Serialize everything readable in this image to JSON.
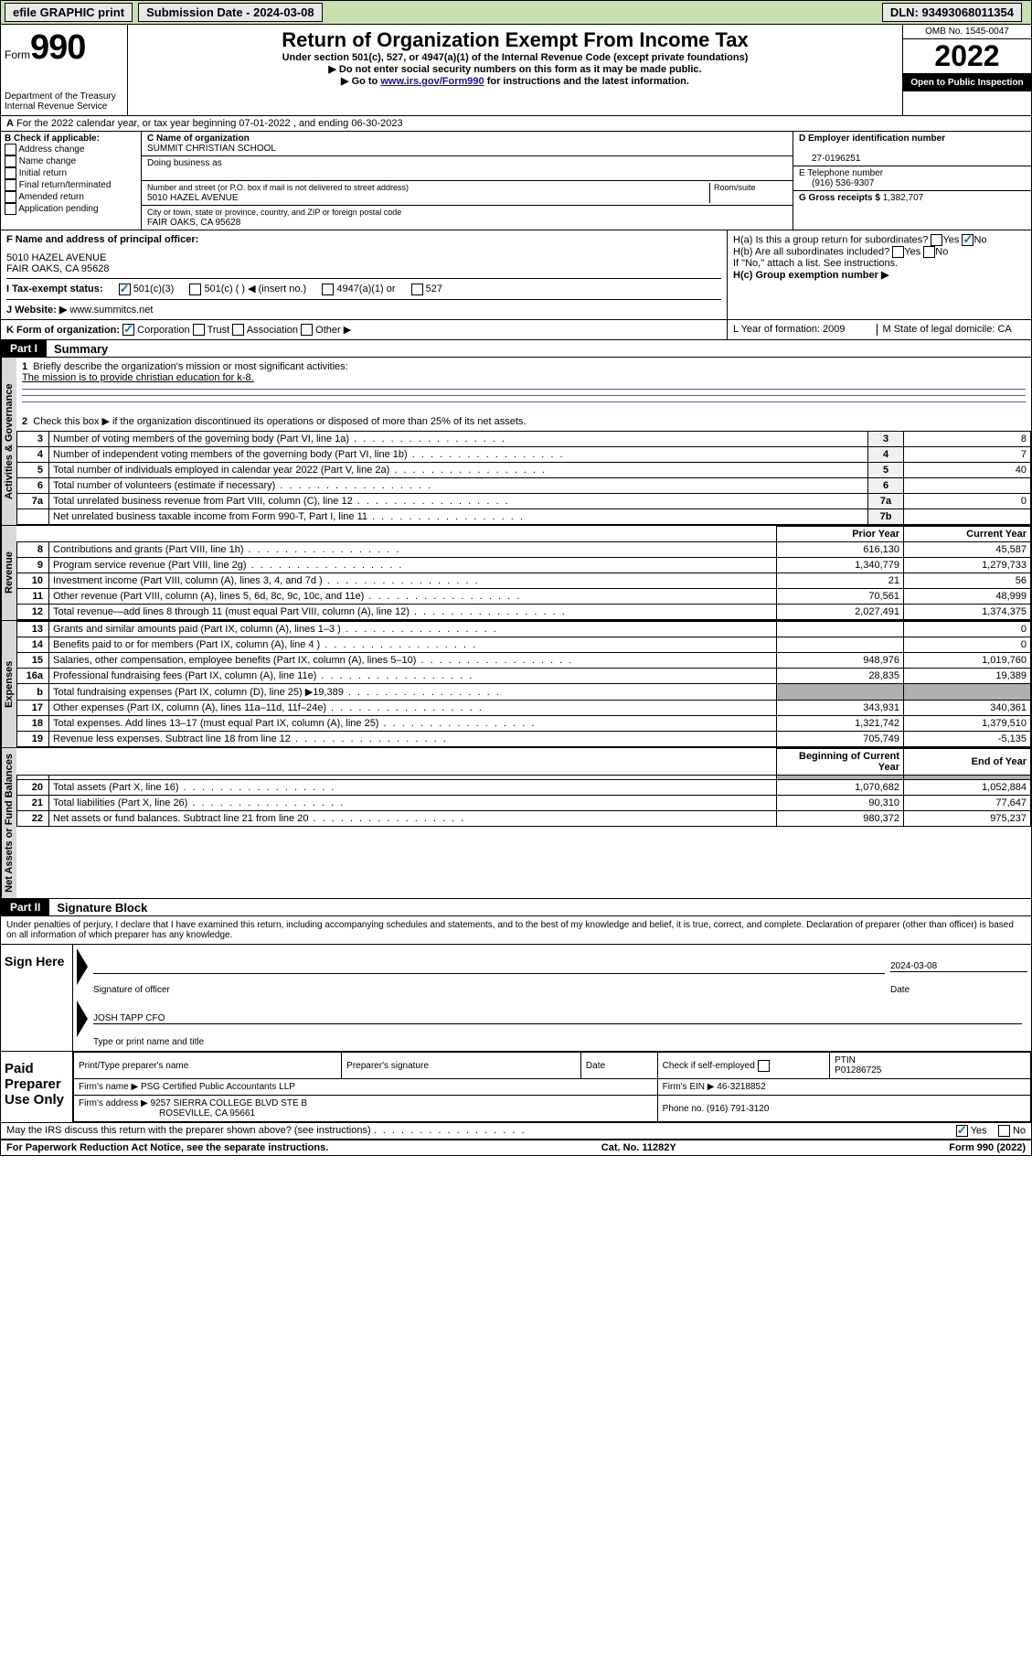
{
  "topbar": {
    "efile": "efile GRAPHIC print",
    "subdate_label": "Submission Date - 2024-03-08",
    "dln": "DLN: 93493068011354"
  },
  "header": {
    "form_word": "Form",
    "form_num": "990",
    "dept": "Department of the Treasury",
    "irs": "Internal Revenue Service",
    "title": "Return of Organization Exempt From Income Tax",
    "sub1": "Under section 501(c), 527, or 4947(a)(1) of the Internal Revenue Code (except private foundations)",
    "sub2": "Do not enter social security numbers on this form as it may be made public.",
    "sub3_pre": "Go to ",
    "sub3_link": "www.irs.gov/Form990",
    "sub3_post": " for instructions and the latest information.",
    "omb": "OMB No. 1545-0047",
    "year": "2022",
    "inspection": "Open to Public Inspection"
  },
  "row_a": {
    "label_a": "A",
    "text": "For the 2022 calendar year, or tax year beginning 07-01-2022   , and ending 06-30-2023"
  },
  "box_b": {
    "label": "B Check if applicable:",
    "opts": [
      "Address change",
      "Name change",
      "Initial return",
      "Final return/terminated",
      "Amended return",
      "Application pending"
    ]
  },
  "box_c": {
    "label_c": "C Name of organization",
    "org": "SUMMIT CHRISTIAN SCHOOL",
    "dba_label": "Doing business as",
    "addr_label": "Number and street (or P.O. box if mail is not delivered to street address)",
    "room_label": "Room/suite",
    "addr": "5010 HAZEL AVENUE",
    "city_label": "City or town, state or province, country, and ZIP or foreign postal code",
    "city": "FAIR OAKS, CA  95628"
  },
  "box_d": {
    "label": "D Employer identification number",
    "ein": "27-0196251"
  },
  "box_e": {
    "label": "E Telephone number",
    "phone": "(916) 536-9307"
  },
  "box_g": {
    "label": "G Gross receipts $",
    "val": "1,382,707"
  },
  "box_f": {
    "label": "F  Name and address of principal officer:",
    "addr1": "5010 HAZEL AVENUE",
    "addr2": "FAIR OAKS, CA  95628"
  },
  "box_h": {
    "ha": "H(a)  Is this a group return for subordinates?",
    "hb": "H(b)  Are all subordinates included?",
    "hb_note": "If \"No,\" attach a list. See instructions.",
    "hc": "H(c)  Group exemption number ▶",
    "yes": "Yes",
    "no": "No"
  },
  "box_i": {
    "label": "I     Tax-exempt status:",
    "o1": "501(c)(3)",
    "o2": "501(c) (  ) ◀ (insert no.)",
    "o3": "4947(a)(1) or",
    "o4": "527"
  },
  "box_j": {
    "label": "J   Website: ▶",
    "val": "www.summitcs.net"
  },
  "box_k": {
    "label": "K Form of organization:",
    "o1": "Corporation",
    "o2": "Trust",
    "o3": "Association",
    "o4": "Other ▶"
  },
  "box_l": {
    "label": "L Year of formation: 2009"
  },
  "box_m": {
    "label": "M State of legal domicile: CA"
  },
  "part1": {
    "hdr": "Part I",
    "title": "Summary",
    "l1": "Briefly describe the organization's mission or most significant activities:",
    "l1_val": "The mission is to provide christian education for k-8.",
    "l2": "Check this box ▶        if the organization discontinued its operations or disposed of more than 25% of its net assets.",
    "lines_gov": [
      {
        "n": "3",
        "t": "Number of voting members of the governing body (Part VI, line 1a)",
        "box": "3",
        "v": "8"
      },
      {
        "n": "4",
        "t": "Number of independent voting members of the governing body (Part VI, line 1b)",
        "box": "4",
        "v": "7"
      },
      {
        "n": "5",
        "t": "Total number of individuals employed in calendar year 2022 (Part V, line 2a)",
        "box": "5",
        "v": "40"
      },
      {
        "n": "6",
        "t": "Total number of volunteers (estimate if necessary)",
        "box": "6",
        "v": ""
      },
      {
        "n": "7a",
        "t": "Total unrelated business revenue from Part VIII, column (C), line 12",
        "box": "7a",
        "v": "0"
      },
      {
        "n": "",
        "t": "Net unrelated business taxable income from Form 990-T, Part I, line 11",
        "box": "7b",
        "v": ""
      }
    ],
    "col_prior": "Prior Year",
    "col_curr": "Current Year",
    "lines_rev": [
      {
        "n": "8",
        "t": "Contributions and grants (Part VIII, line 1h)",
        "p": "616,130",
        "c": "45,587"
      },
      {
        "n": "9",
        "t": "Program service revenue (Part VIII, line 2g)",
        "p": "1,340,779",
        "c": "1,279,733"
      },
      {
        "n": "10",
        "t": "Investment income (Part VIII, column (A), lines 3, 4, and 7d )",
        "p": "21",
        "c": "56"
      },
      {
        "n": "11",
        "t": "Other revenue (Part VIII, column (A), lines 5, 6d, 8c, 9c, 10c, and 11e)",
        "p": "70,561",
        "c": "48,999"
      },
      {
        "n": "12",
        "t": "Total revenue—add lines 8 through 11 (must equal Part VIII, column (A), line 12)",
        "p": "2,027,491",
        "c": "1,374,375"
      }
    ],
    "lines_exp": [
      {
        "n": "13",
        "t": "Grants and similar amounts paid (Part IX, column (A), lines 1–3 )",
        "p": "",
        "c": "0"
      },
      {
        "n": "14",
        "t": "Benefits paid to or for members (Part IX, column (A), line 4 )",
        "p": "",
        "c": "0"
      },
      {
        "n": "15",
        "t": "Salaries, other compensation, employee benefits (Part IX, column (A), lines 5–10)",
        "p": "948,976",
        "c": "1,019,760"
      },
      {
        "n": "16a",
        "t": "Professional fundraising fees (Part IX, column (A), line 11e)",
        "p": "28,835",
        "c": "19,389"
      },
      {
        "n": "b",
        "t": "Total fundraising expenses (Part IX, column (D), line 25) ▶19,389",
        "p": "__SHADE__",
        "c": "__SHADE__"
      },
      {
        "n": "17",
        "t": "Other expenses (Part IX, column (A), lines 11a–11d, 11f–24e)",
        "p": "343,931",
        "c": "340,361"
      },
      {
        "n": "18",
        "t": "Total expenses. Add lines 13–17 (must equal Part IX, column (A), line 25)",
        "p": "1,321,742",
        "c": "1,379,510"
      },
      {
        "n": "19",
        "t": "Revenue less expenses. Subtract line 18 from line 12",
        "p": "705,749",
        "c": "-5,135"
      }
    ],
    "col_begin": "Beginning of Current Year",
    "col_end": "End of Year",
    "lines_net": [
      {
        "n": "20",
        "t": "Total assets (Part X, line 16)",
        "p": "1,070,682",
        "c": "1,052,884"
      },
      {
        "n": "21",
        "t": "Total liabilities (Part X, line 26)",
        "p": "90,310",
        "c": "77,647"
      },
      {
        "n": "22",
        "t": "Net assets or fund balances. Subtract line 21 from line 20",
        "p": "980,372",
        "c": "975,237"
      }
    ],
    "tab_gov": "Activities & Governance",
    "tab_rev": "Revenue",
    "tab_exp": "Expenses",
    "tab_net": "Net Assets or Fund Balances"
  },
  "part2": {
    "hdr": "Part II",
    "title": "Signature Block",
    "decl": "Under penalties of perjury, I declare that I have examined this return, including accompanying schedules and statements, and to the best of my knowledge and belief, it is true, correct, and complete. Declaration of preparer (other than officer) is based on all information of which preparer has any knowledge.",
    "sign_here": "Sign Here",
    "sig_officer": "Signature of officer",
    "sig_date": "2024-03-08",
    "date_lbl": "Date",
    "officer": "JOSH TAPP CFO",
    "type_name": "Type or print name and title",
    "paid": "Paid Preparer Use Only",
    "prep_name_lbl": "Print/Type preparer's name",
    "prep_sig_lbl": "Preparer's signature",
    "check_self": "Check        if self-employed",
    "ptin_lbl": "PTIN",
    "ptin": "P01286725",
    "firm_name_lbl": "Firm's name    ▶",
    "firm_name": "PSG Certified Public Accountants LLP",
    "firm_ein_lbl": "Firm's EIN ▶",
    "firm_ein": "46-3218852",
    "firm_addr_lbl": "Firm's address ▶",
    "firm_addr1": "9257 SIERRA COLLEGE BLVD STE B",
    "firm_addr2": "ROSEVILLE, CA  95661",
    "phone_lbl": "Phone no.",
    "phone": "(916) 791-3120",
    "discuss": "May the IRS discuss this return with the preparer shown above? (see instructions)",
    "yes": "Yes",
    "no": "No"
  },
  "footer": {
    "left": "For Paperwork Reduction Act Notice, see the separate instructions.",
    "mid": "Cat. No. 11282Y",
    "right": "Form 990 (2022)"
  }
}
